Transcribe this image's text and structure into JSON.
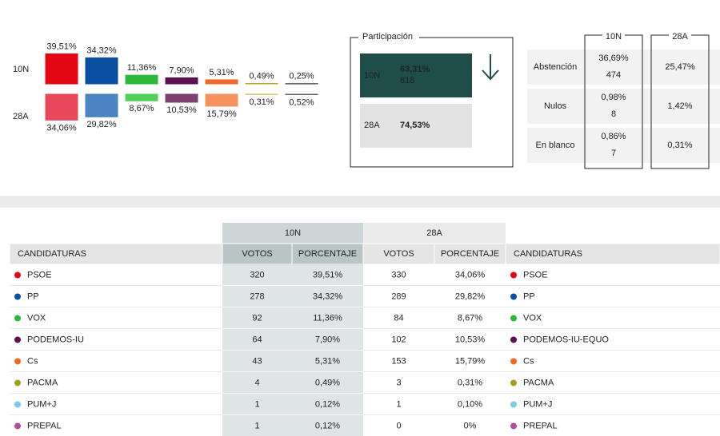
{
  "summary": {
    "series": [
      {
        "name": "10N",
        "values": [
          39.51,
          34.32,
          11.36,
          7.9,
          5.31,
          0.49,
          0.25
        ],
        "value_labels": [
          "39,51%",
          "34,32%",
          "11,36%",
          "7,90%",
          "5,31%",
          "0,49%",
          "0,25%"
        ],
        "colors": [
          "#e30613",
          "#0a4fa0",
          "#2cb83a",
          "#5b1150",
          "#ef6a2a",
          "#b3a622",
          "#333333"
        ]
      },
      {
        "name": "28A",
        "values": [
          34.06,
          29.82,
          8.67,
          10.53,
          15.79,
          0.31,
          0.52
        ],
        "value_labels": [
          "34,06%",
          "29,82%",
          "8,67%",
          "10,53%",
          "15,79%",
          "0,31%",
          "0,52%"
        ],
        "colors": [
          "#e8485a",
          "#4a84c2",
          "#4fd15a",
          "#7c4070",
          "#f5945e",
          "#c9bd4a",
          "#666666"
        ]
      }
    ]
  },
  "participation": {
    "title": "Participación",
    "current": {
      "label": "10N",
      "value": "63,31%",
      "votes": "818"
    },
    "previous": {
      "label": "28A",
      "value": "74,53%"
    }
  },
  "abstention": {
    "headers": [
      "10N",
      "28A"
    ],
    "rows": [
      {
        "label": "Abstención",
        "current": "36,69%",
        "current_votes": "474",
        "previous": "25,47%"
      },
      {
        "label": "Nulos",
        "current": "0,98%",
        "current_votes": "8",
        "previous": "1,42%"
      },
      {
        "label": "En blanco",
        "current": "0,86%",
        "current_votes": "7",
        "previous": "0,31%"
      }
    ]
  },
  "table": {
    "groups": [
      "10N",
      "28A"
    ],
    "headers": [
      "CANDIDATURAS",
      "VOTOS",
      "PORCENTAJE",
      "VOTOS",
      "PORCENTAJE",
      "CANDIDATURAS"
    ],
    "rows": [
      [
        "PSOE",
        "320",
        "39,51%",
        "330",
        "34,06%",
        "PSOE"
      ],
      [
        "PP",
        "278",
        "34,32%",
        "289",
        "29,82%",
        "PP"
      ],
      [
        "VOX",
        "92",
        "11,36%",
        "84",
        "8,67%",
        "VOX"
      ],
      [
        "PODEMOS-IU",
        "64",
        "7,90%",
        "102",
        "10,53%",
        "PODEMOS-IU-EQUO"
      ],
      [
        "Cs",
        "43",
        "5,31%",
        "153",
        "15,79%",
        "Cs"
      ],
      [
        "PACMA",
        "4",
        "0,49%",
        "3",
        "0,31%",
        "PACMA"
      ],
      [
        "PUM+J",
        "1",
        "0,12%",
        "1",
        "0,10%",
        "PUM+J"
      ],
      [
        "PREPAL",
        "1",
        "0,12%",
        "0",
        "0%",
        "PREPAL"
      ]
    ],
    "dot_colors": [
      "#e30613",
      "#0a4fa0",
      "#2cb83a",
      "#5b1150",
      "#ef6a2a",
      "#a2a020",
      "#7ec8e8",
      "#b04fa0"
    ]
  }
}
